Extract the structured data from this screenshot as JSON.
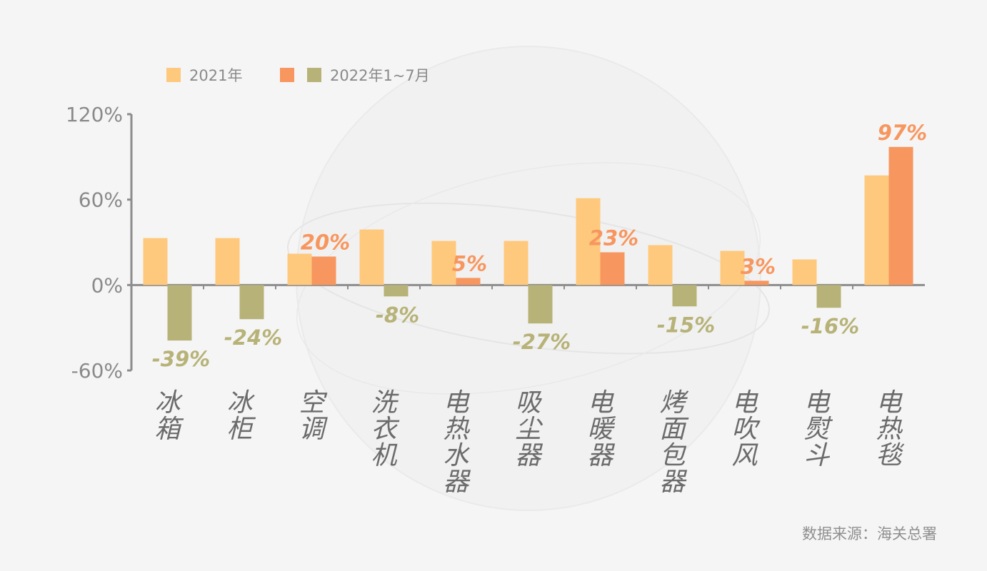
{
  "chart_data": {
    "type": "bar",
    "categories": [
      "冰箱",
      "冰柜",
      "空调",
      "洗衣机",
      "电热水器",
      "吸尘器",
      "电暖器",
      "烤面包器",
      "电吹风",
      "电熨斗",
      "电热毯"
    ],
    "series": [
      {
        "name": "2021年",
        "color": "#fec97d",
        "values": [
          33,
          33,
          22,
          39,
          31,
          31,
          61,
          28,
          24,
          18,
          77
        ],
        "labels": [
          "",
          "",
          "",
          "",
          "",
          "",
          "",
          "",
          "",
          "",
          ""
        ]
      },
      {
        "name": "2022年1~7月",
        "color_positive": "#f7965e",
        "color_negative": "#b7b378",
        "values": [
          -39,
          -24,
          20,
          -8,
          5,
          -27,
          23,
          -15,
          3,
          -16,
          97
        ],
        "labels": [
          "-39%",
          "-24%",
          "20%",
          "-8%",
          "5%",
          "-27%",
          "23%",
          "-15%",
          "3%",
          "-16%",
          "97%"
        ]
      }
    ],
    "legend": [
      {
        "label": "2021年",
        "swatches": [
          "#fec97d"
        ]
      },
      {
        "label": "2022年1~7月",
        "swatches": [
          "#f7965e",
          "#b7b378"
        ]
      }
    ],
    "legend_position": "top-left",
    "y_ticks": [
      "120%",
      "60%",
      "0%",
      "-60%"
    ],
    "y_tick_values": [
      120,
      60,
      0,
      -60
    ],
    "ylim": [
      -60,
      120
    ],
    "grid": false,
    "axis_color": "#8c8c8c",
    "category_label_color": "#6b6b6b"
  },
  "source": "数据来源：海关总署"
}
